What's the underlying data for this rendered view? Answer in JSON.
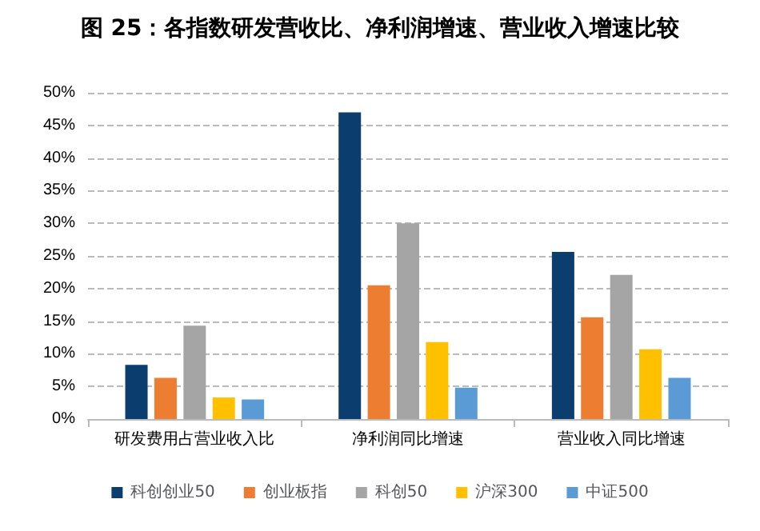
{
  "chart_data": {
    "type": "bar",
    "title": "图 25：各指数研发营收比、净利润增速、营业收入增速比较",
    "categories": [
      "研发费用占营业收入比",
      "净利润同比增速",
      "营业收入同比增速"
    ],
    "series": [
      {
        "name": "科创创业50",
        "color": "#0b3d6e",
        "values": [
          8.3,
          47.0,
          25.6
        ]
      },
      {
        "name": "创业板指",
        "color": "#ed7d31",
        "values": [
          6.3,
          20.5,
          15.6
        ]
      },
      {
        "name": "科创50",
        "color": "#a5a5a5",
        "values": [
          14.3,
          30.0,
          22.1
        ]
      },
      {
        "name": "沪深300",
        "color": "#ffc000",
        "values": [
          3.3,
          11.8,
          10.7
        ]
      },
      {
        "name": "中证500",
        "color": "#5b9bd5",
        "values": [
          3.0,
          4.8,
          6.3
        ]
      }
    ],
    "ylim": [
      0,
      50
    ],
    "yticks": [
      {
        "value": 0,
        "label": "0%"
      },
      {
        "value": 5,
        "label": "5%"
      },
      {
        "value": 10,
        "label": "10%"
      },
      {
        "value": 15,
        "label": "15%"
      },
      {
        "value": 20,
        "label": "20%"
      },
      {
        "value": 25,
        "label": "25%"
      },
      {
        "value": 30,
        "label": "30%"
      },
      {
        "value": 35,
        "label": "35%"
      },
      {
        "value": 40,
        "label": "40%"
      },
      {
        "value": 45,
        "label": "45%"
      },
      {
        "value": 50,
        "label": "50%"
      }
    ],
    "grid": "y",
    "legend": "bottom"
  }
}
